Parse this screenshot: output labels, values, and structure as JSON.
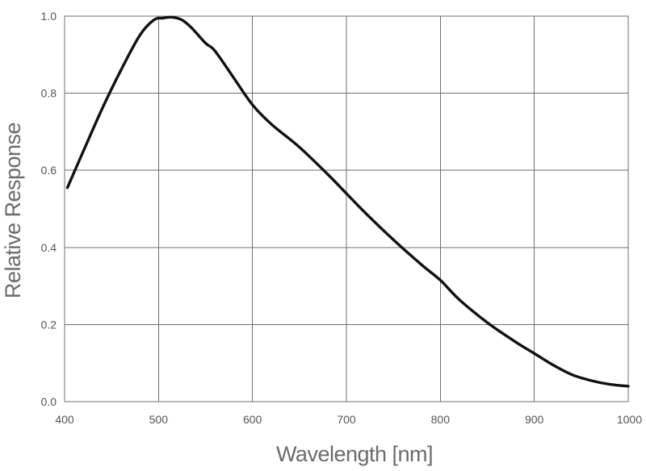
{
  "chart_data": {
    "type": "line",
    "title": "",
    "xlabel": "Wavelength [nm]",
    "ylabel": "Relative Response",
    "xlim": [
      400,
      1000
    ],
    "ylim": [
      0.0,
      1.0
    ],
    "xticks": [
      400,
      500,
      600,
      700,
      800,
      900,
      1000
    ],
    "xtick_labels": [
      "400",
      "500",
      "600",
      "700",
      "800",
      "900",
      "1000"
    ],
    "yticks": [
      0.0,
      0.2,
      0.4,
      0.6,
      0.8,
      1.0
    ],
    "ytick_labels": [
      "0.0",
      "0.2",
      "0.4",
      "0.6",
      "0.8",
      "1.0"
    ],
    "grid": true,
    "legend": "none",
    "series": [
      {
        "color": "#111111",
        "x": [
          403,
          420,
          440,
          460,
          480,
          495,
          505,
          515,
          525,
          535,
          550,
          560,
          580,
          600,
          620,
          650,
          680,
          700,
          720,
          750,
          780,
          800,
          820,
          850,
          880,
          900,
          920,
          940,
          960,
          980,
          1000
        ],
        "y": [
          0.555,
          0.65,
          0.76,
          0.86,
          0.95,
          0.99,
          0.995,
          0.997,
          0.99,
          0.97,
          0.93,
          0.91,
          0.84,
          0.77,
          0.72,
          0.66,
          0.59,
          0.54,
          0.49,
          0.42,
          0.355,
          0.315,
          0.265,
          0.205,
          0.155,
          0.125,
          0.095,
          0.07,
          0.055,
          0.045,
          0.04
        ]
      }
    ]
  }
}
